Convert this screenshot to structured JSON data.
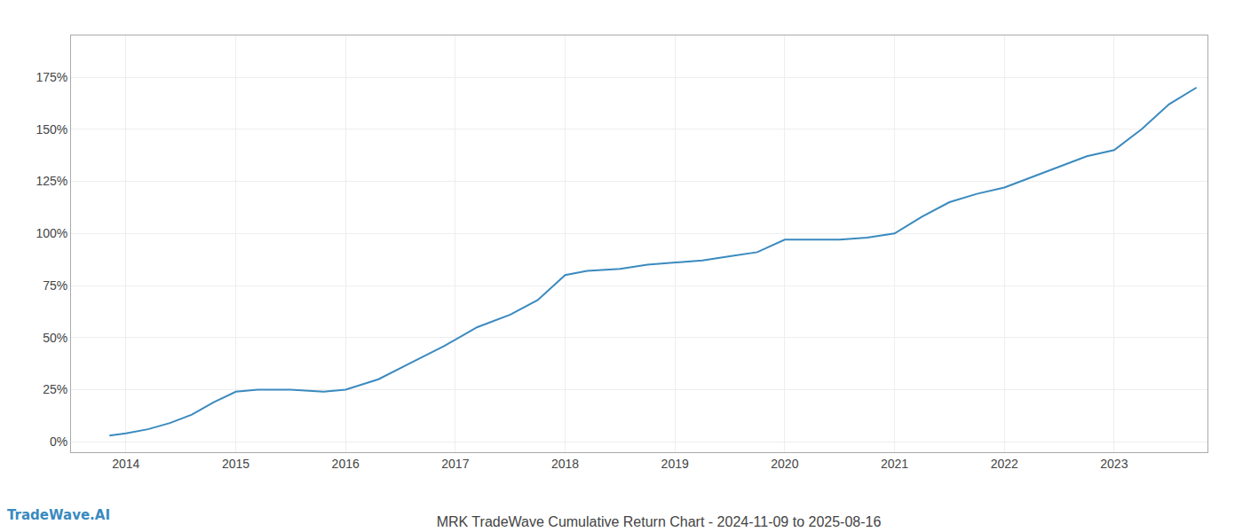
{
  "chart_data": {
    "type": "line",
    "title": "MRK TradeWave Cumulative Return Chart - 2024-11-09 to 2025-08-16",
    "annotations": [
      "TradeWave.AI"
    ],
    "x": [
      2013.85,
      2014.0,
      2014.2,
      2014.4,
      2014.6,
      2014.8,
      2015.0,
      2015.2,
      2015.5,
      2015.8,
      2016.0,
      2016.3,
      2016.6,
      2016.9,
      2017.2,
      2017.5,
      2017.75,
      2018.0,
      2018.2,
      2018.5,
      2018.75,
      2019.0,
      2019.25,
      2019.5,
      2019.75,
      2020.0,
      2020.25,
      2020.5,
      2020.75,
      2021.0,
      2021.25,
      2021.5,
      2021.75,
      2022.0,
      2022.25,
      2022.5,
      2022.75,
      2023.0,
      2023.25,
      2023.5,
      2023.75
    ],
    "values": [
      3,
      4,
      6,
      9,
      13,
      19,
      24,
      25,
      25,
      24,
      25,
      30,
      38,
      46,
      55,
      61,
      68,
      80,
      82,
      83,
      85,
      86,
      87,
      89,
      91,
      97,
      97,
      97,
      98,
      100,
      108,
      115,
      119,
      122,
      127,
      132,
      137,
      140,
      150,
      162,
      170
    ],
    "color": "#3a8abf",
    "xlim": [
      2013.5,
      2023.85
    ],
    "ylim": [
      -5,
      195
    ],
    "xticks": [
      2014,
      2015,
      2016,
      2017,
      2018,
      2019,
      2020,
      2021,
      2022,
      2023
    ],
    "yticks": [
      {
        "value": 0,
        "label": "0%"
      },
      {
        "value": 25,
        "label": "25%"
      },
      {
        "value": 50,
        "label": "50%"
      },
      {
        "value": 75,
        "label": "75%"
      },
      {
        "value": 100,
        "label": "100%"
      },
      {
        "value": 125,
        "label": "125%"
      },
      {
        "value": 150,
        "label": "150%"
      },
      {
        "value": 175,
        "label": "175%"
      }
    ],
    "grid": true
  }
}
